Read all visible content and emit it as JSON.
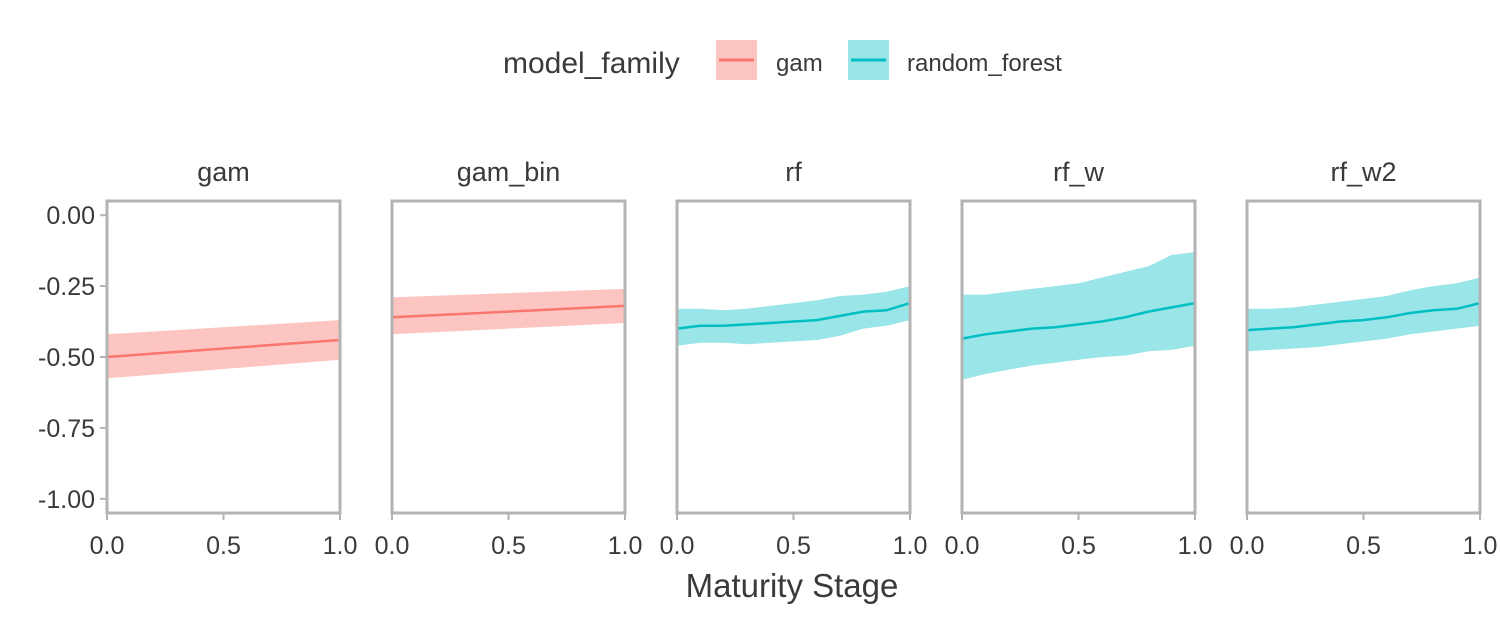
{
  "chart_data": {
    "type": "line",
    "xlabel": "Maturity Stage",
    "ylabel": "",
    "xlim": [
      0,
      1
    ],
    "ylim": [
      -1.05,
      0.05
    ],
    "x_ticks": [
      0,
      0.5,
      1
    ],
    "x_tick_labels": [
      "0.0",
      "0.5",
      "1.0"
    ],
    "y_ticks": [
      0,
      -0.25,
      -0.5,
      -0.75,
      -1
    ],
    "y_tick_labels": [
      "0.00",
      "-0.25",
      "-0.50",
      "-0.75",
      "-1.00"
    ],
    "grid": false,
    "legend": {
      "title": "model_family",
      "placement": "top",
      "entries": [
        {
          "label": "gam",
          "line_color": "#F8766D",
          "band_color": "#FCC5C1"
        },
        {
          "label": "random_forest",
          "line_color": "#00BFC4",
          "band_color": "#99E5E7"
        }
      ]
    },
    "panels": [
      {
        "name": "gam",
        "family": "gam",
        "x": [
          0,
          1
        ],
        "y": [
          -0.5,
          -0.44
        ],
        "lower": [
          -0.575,
          -0.51
        ],
        "upper": [
          -0.42,
          -0.37
        ]
      },
      {
        "name": "gam_bin",
        "family": "gam",
        "x": [
          0,
          1
        ],
        "y": [
          -0.36,
          -0.32
        ],
        "lower": [
          -0.42,
          -0.38
        ],
        "upper": [
          -0.29,
          -0.26
        ]
      },
      {
        "name": "rf",
        "family": "random_forest",
        "x": [
          0,
          0.1,
          0.2,
          0.3,
          0.4,
          0.5,
          0.6,
          0.7,
          0.8,
          0.9,
          1.0
        ],
        "y": [
          -0.4,
          -0.39,
          -0.39,
          -0.385,
          -0.38,
          -0.375,
          -0.37,
          -0.355,
          -0.34,
          -0.335,
          -0.31
        ],
        "lower": [
          -0.46,
          -0.45,
          -0.45,
          -0.455,
          -0.45,
          -0.445,
          -0.44,
          -0.425,
          -0.4,
          -0.39,
          -0.37
        ],
        "upper": [
          -0.33,
          -0.33,
          -0.335,
          -0.33,
          -0.32,
          -0.31,
          -0.3,
          -0.285,
          -0.28,
          -0.27,
          -0.25
        ]
      },
      {
        "name": "rf_w",
        "family": "random_forest",
        "x": [
          0,
          0.1,
          0.2,
          0.3,
          0.4,
          0.5,
          0.6,
          0.7,
          0.8,
          0.9,
          1.0
        ],
        "y": [
          -0.435,
          -0.42,
          -0.41,
          -0.4,
          -0.395,
          -0.385,
          -0.375,
          -0.36,
          -0.34,
          -0.325,
          -0.31
        ],
        "lower": [
          -0.58,
          -0.56,
          -0.545,
          -0.53,
          -0.52,
          -0.51,
          -0.5,
          -0.495,
          -0.48,
          -0.475,
          -0.46
        ],
        "upper": [
          -0.28,
          -0.28,
          -0.27,
          -0.26,
          -0.25,
          -0.24,
          -0.22,
          -0.2,
          -0.18,
          -0.14,
          -0.13
        ]
      },
      {
        "name": "rf_w2",
        "family": "random_forest",
        "x": [
          0,
          0.1,
          0.2,
          0.3,
          0.4,
          0.5,
          0.6,
          0.7,
          0.8,
          0.9,
          1.0
        ],
        "y": [
          -0.405,
          -0.4,
          -0.395,
          -0.385,
          -0.375,
          -0.37,
          -0.36,
          -0.345,
          -0.335,
          -0.33,
          -0.31
        ],
        "lower": [
          -0.48,
          -0.475,
          -0.47,
          -0.465,
          -0.455,
          -0.445,
          -0.435,
          -0.42,
          -0.41,
          -0.4,
          -0.39
        ],
        "upper": [
          -0.33,
          -0.33,
          -0.325,
          -0.315,
          -0.305,
          -0.295,
          -0.285,
          -0.265,
          -0.25,
          -0.24,
          -0.22
        ]
      }
    ]
  }
}
